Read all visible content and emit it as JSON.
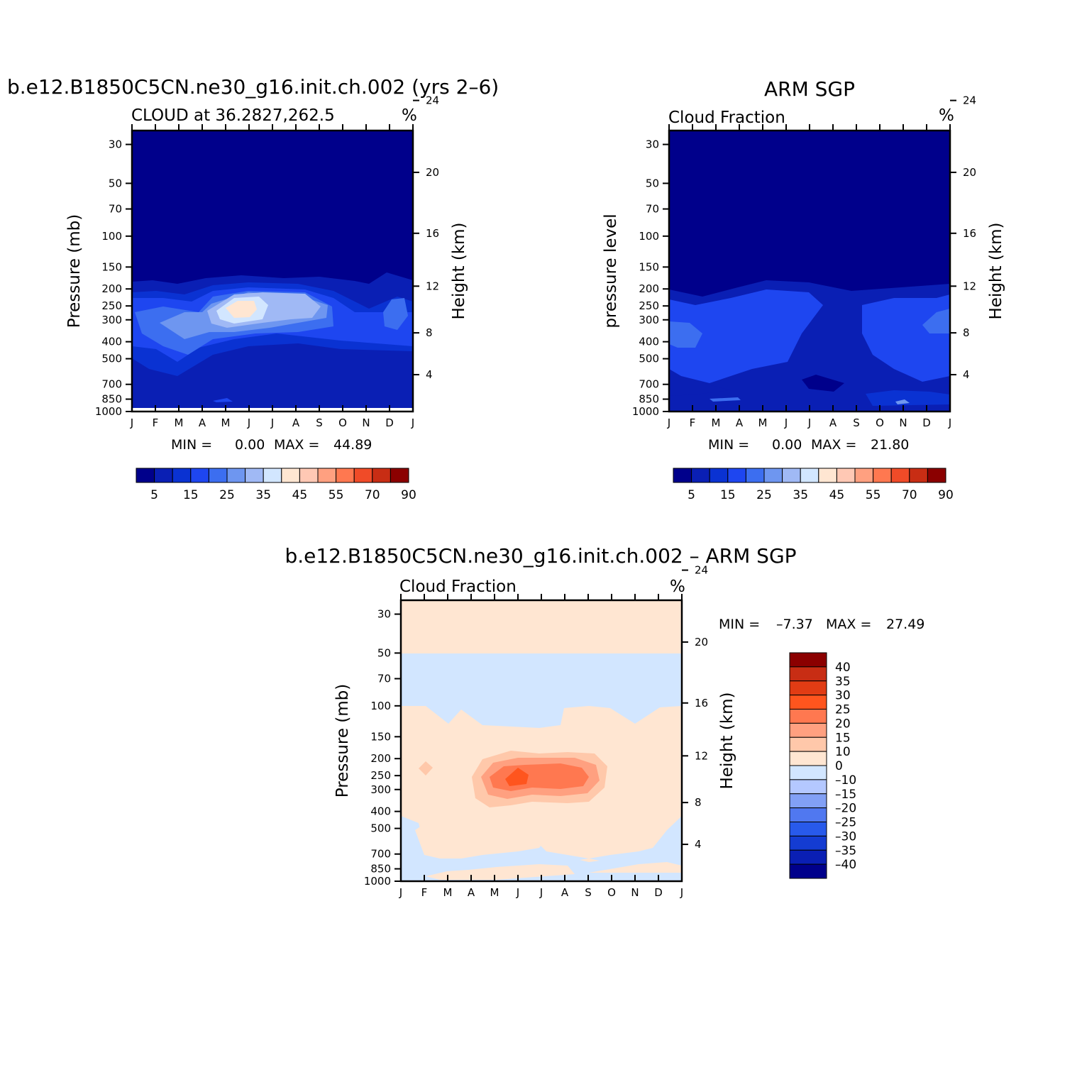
{
  "chart_data": [
    {
      "type": "heatmap",
      "title": "b.e12.B1850C5CN.ne30_g16.init.ch.002 (yrs 2–6)",
      "subtitle": "CLOUD at 36.2827,262.5",
      "units": "%",
      "ylabel": "Pressure (mb)",
      "ylabel_right": "Height (km)",
      "x_ticks": [
        "J",
        "F",
        "M",
        "A",
        "M",
        "J",
        "J",
        "A",
        "S",
        "O",
        "N",
        "D",
        "J"
      ],
      "y_ticks": [
        30,
        50,
        70,
        100,
        150,
        200,
        250,
        300,
        400,
        500,
        700,
        850,
        1000
      ],
      "y_right_ticks": [
        24,
        20,
        16,
        12,
        8,
        4
      ],
      "min_label": "MIN =",
      "max_label": "MAX =",
      "min": "0.00",
      "max": "44.89",
      "colorbar_labels": [
        "5",
        "15",
        "25",
        "35",
        "45",
        "55",
        "70",
        "90"
      ],
      "max_location": {
        "month": 5,
        "pressure": 250
      }
    },
    {
      "type": "heatmap",
      "title": "ARM SGP",
      "subtitle": "Cloud Fraction",
      "units": "%",
      "ylabel": "pressure level",
      "ylabel_right": "Height (km)",
      "x_ticks": [
        "J",
        "F",
        "M",
        "A",
        "M",
        "J",
        "J",
        "A",
        "S",
        "O",
        "N",
        "D",
        "J"
      ],
      "y_ticks": [
        30,
        50,
        70,
        100,
        150,
        200,
        250,
        300,
        400,
        500,
        700,
        850,
        1000
      ],
      "y_right_ticks": [
        24,
        20,
        16,
        12,
        8,
        4
      ],
      "min_label": "MIN =",
      "max_label": "MAX =",
      "min": "0.00",
      "max": "21.80",
      "colorbar_labels": [
        "5",
        "15",
        "25",
        "35",
        "45",
        "55",
        "70",
        "90"
      ]
    },
    {
      "type": "heatmap",
      "title": "b.e12.B1850C5CN.ne30_g16.init.ch.002 – ARM SGP",
      "subtitle": "Cloud Fraction",
      "units": "%",
      "ylabel": "Pressure (mb)",
      "ylabel_right": "Height (km)",
      "x_ticks": [
        "J",
        "F",
        "M",
        "A",
        "M",
        "J",
        "J",
        "A",
        "S",
        "O",
        "N",
        "D",
        "J"
      ],
      "y_ticks": [
        30,
        50,
        70,
        100,
        150,
        200,
        250,
        300,
        400,
        500,
        700,
        850,
        1000
      ],
      "y_right_ticks": [
        24,
        20,
        16,
        12,
        8,
        4
      ],
      "min_label": "MIN =",
      "max_label": "MAX =",
      "min": "–7.37",
      "max": "27.49",
      "colorbar_labels": [
        "40",
        "35",
        "30",
        "25",
        "20",
        "15",
        "10",
        "0",
        "–10",
        "–15",
        "–20",
        "–25",
        "–30",
        "–35",
        "–40"
      ]
    }
  ],
  "colors": {
    "seq": [
      "#00008b",
      "#0a1fb4",
      "#0a32d2",
      "#1e46f0",
      "#3c6ef0",
      "#6e96f0",
      "#a0b9f5",
      "#d2e6ff",
      "#ffe6d2",
      "#ffc8b4",
      "#ffa080",
      "#ff7850",
      "#f04b28",
      "#c82d14",
      "#8b0000"
    ],
    "diff": [
      "#8b0000",
      "#c82d14",
      "#e13c14",
      "#ff551e",
      "#ff7850",
      "#ffa080",
      "#ffc8aa",
      "#ffe6d2",
      "#d2e6ff",
      "#b4c8ff",
      "#82a0f5",
      "#5078f0",
      "#285aeb",
      "#143cd2",
      "#0a1fb4",
      "#00008b"
    ]
  }
}
